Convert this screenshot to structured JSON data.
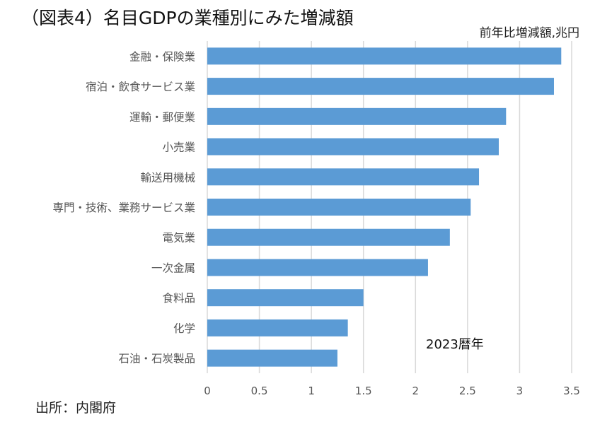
{
  "chart_data": {
    "type": "bar",
    "orientation": "horizontal",
    "title": "（図表4）名目GDPの業種別にみた増減額",
    "unit_label": "前年比増減額,兆円",
    "annotation": "2023暦年",
    "source": "出所：内閣府",
    "categories": [
      "金融・保険業",
      "宿泊・飲食サービス業",
      "運輸・郵便業",
      "小売業",
      "輸送用機械",
      "専門・技術、業務サービス業",
      "電気業",
      "一次金属",
      "食料品",
      "化学",
      "石油・石炭製品"
    ],
    "values": [
      3.4,
      3.33,
      2.87,
      2.8,
      2.61,
      2.53,
      2.33,
      2.12,
      1.5,
      1.35,
      1.25
    ],
    "xlim": [
      0,
      3.5
    ],
    "ticks": [
      "0",
      "0.5",
      "1",
      "1.5",
      "2",
      "2.5",
      "3",
      "3.5"
    ],
    "grid": true,
    "bar_color": "#5b9bd5"
  }
}
